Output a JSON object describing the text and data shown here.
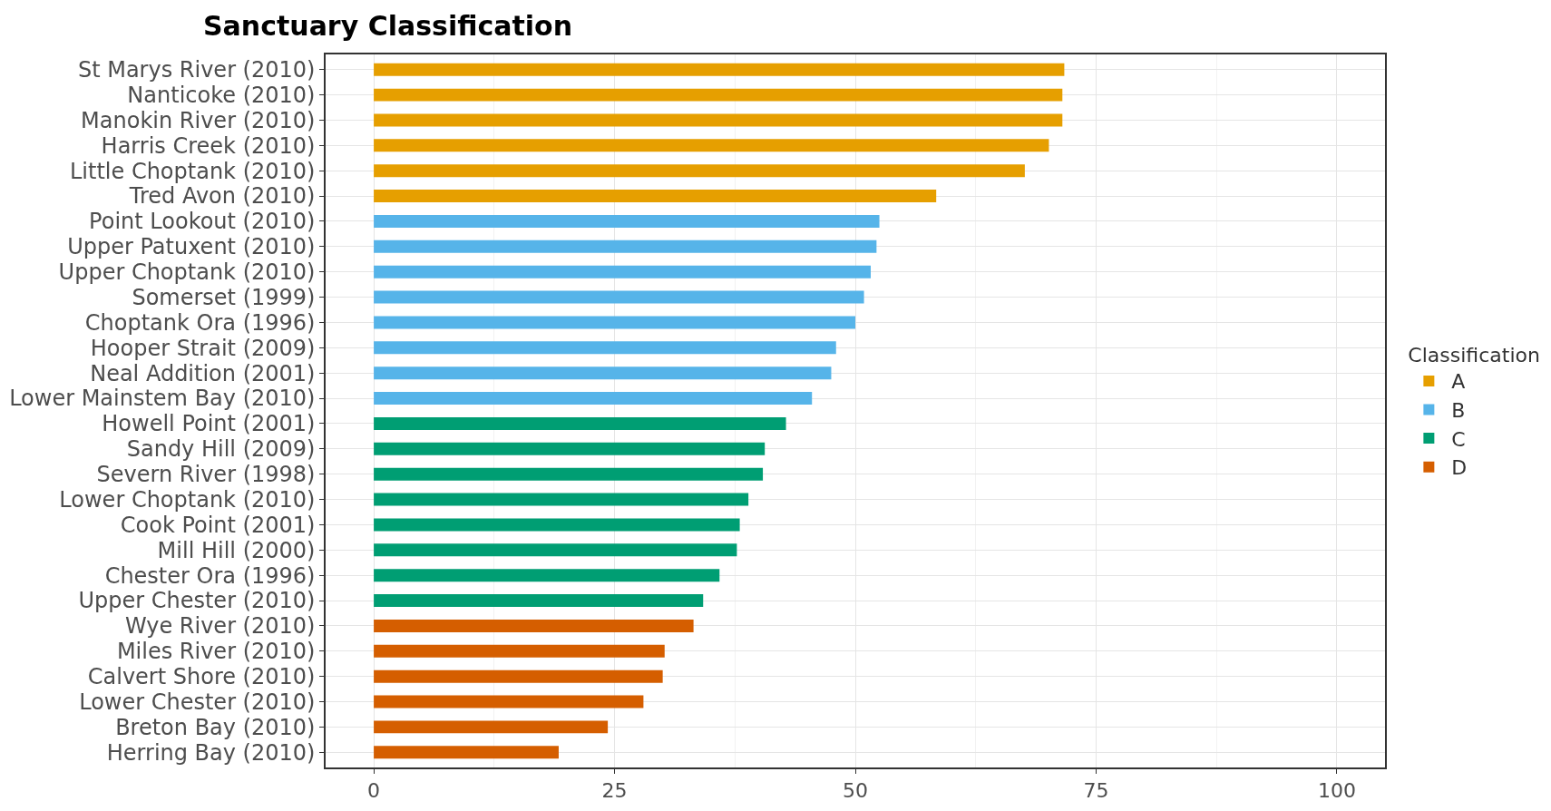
{
  "chart_data": {
    "type": "bar",
    "orientation": "horizontal",
    "title": "Sanctuary Classification",
    "legend_title": "Classification",
    "legend": "right",
    "grid": true,
    "categories": [
      "St Marys River (2010)",
      "Nanticoke (2010)",
      "Manokin River (2010)",
      "Harris Creek (2010)",
      "Little Choptank (2010)",
      "Tred Avon (2010)",
      "Point Lookout (2010)",
      "Upper Patuxent (2010)",
      "Upper Choptank (2010)",
      "Somerset (1999)",
      "Choptank Ora (1996)",
      "Hooper Strait (2009)",
      "Neal Addition (2001)",
      "Lower Mainstem Bay (2010)",
      "Howell Point (2001)",
      "Sandy Hill (2009)",
      "Severn River (1998)",
      "Lower Choptank (2010)",
      "Cook Point (2001)",
      "Mill Hill (2000)",
      "Chester Ora (1996)",
      "Upper Chester (2010)",
      "Wye River (2010)",
      "Miles River (2010)",
      "Calvert Shore (2010)",
      "Lower Chester (2010)",
      "Breton Bay (2010)",
      "Herring Bay (2010)"
    ],
    "series": [
      {
        "name": "A",
        "color": "#e69f00",
        "values": [
          71.7,
          71.5,
          71.5,
          70.1,
          67.6,
          58.4,
          null,
          null,
          null,
          null,
          null,
          null,
          null,
          null,
          null,
          null,
          null,
          null,
          null,
          null,
          null,
          null,
          null,
          null,
          null,
          null,
          null,
          null
        ]
      },
      {
        "name": "B",
        "color": "#56b4e9",
        "values": [
          null,
          null,
          null,
          null,
          null,
          null,
          52.5,
          52.2,
          51.6,
          50.9,
          50.0,
          48.0,
          47.5,
          45.5,
          null,
          null,
          null,
          null,
          null,
          null,
          null,
          null,
          null,
          null,
          null,
          null,
          null,
          null
        ]
      },
      {
        "name": "C",
        "color": "#009e73",
        "values": [
          null,
          null,
          null,
          null,
          null,
          null,
          null,
          null,
          null,
          null,
          null,
          null,
          null,
          null,
          42.8,
          40.6,
          40.4,
          38.9,
          38.0,
          37.7,
          35.9,
          34.2,
          null,
          null,
          null,
          null,
          null,
          null
        ]
      },
      {
        "name": "D",
        "color": "#d55e00",
        "values": [
          null,
          null,
          null,
          null,
          null,
          null,
          null,
          null,
          null,
          null,
          null,
          null,
          null,
          null,
          null,
          null,
          null,
          null,
          null,
          null,
          null,
          null,
          33.2,
          30.2,
          30.0,
          28.0,
          24.3,
          19.2
        ]
      }
    ],
    "xlim": [
      -5,
      105
    ],
    "xticks": [
      0,
      25,
      50,
      75,
      100
    ]
  }
}
